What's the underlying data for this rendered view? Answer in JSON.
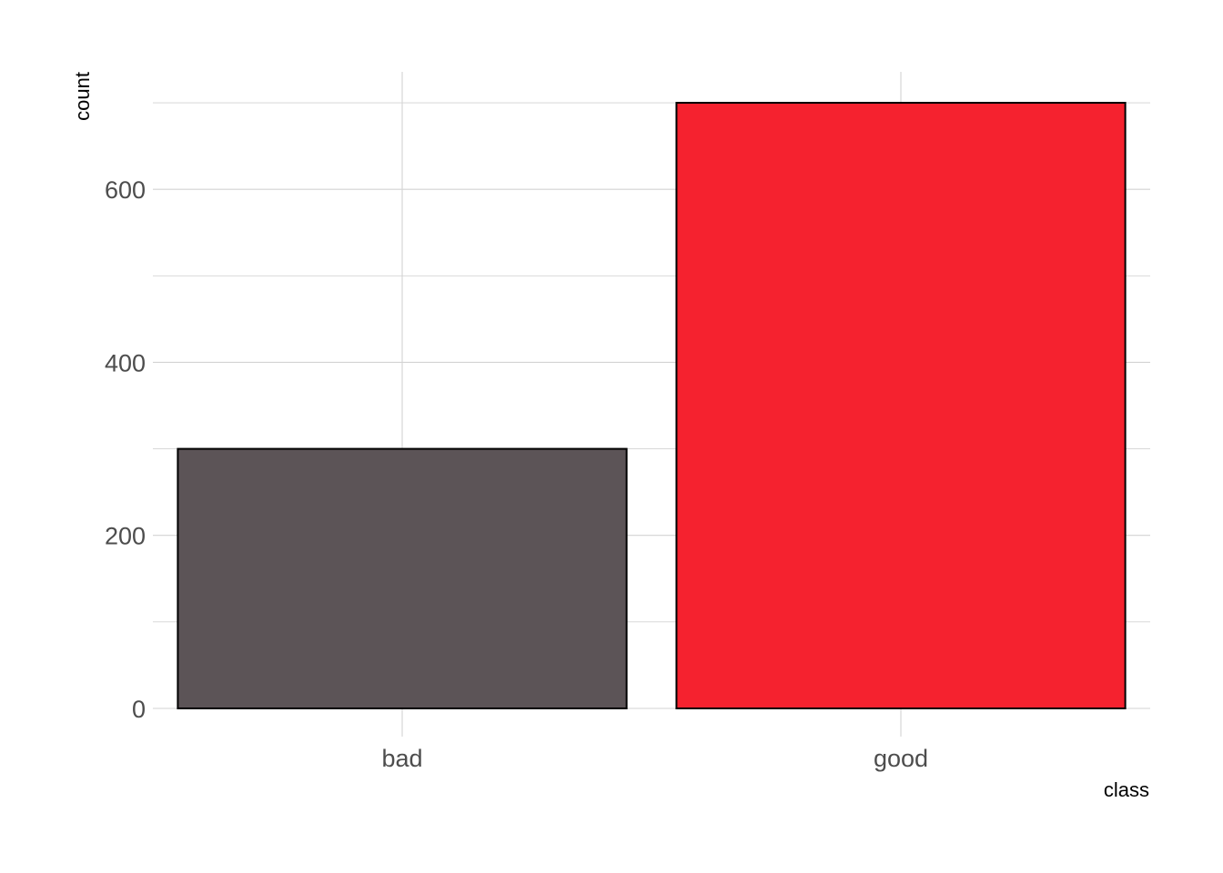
{
  "chart_data": {
    "type": "bar",
    "categories": [
      "bad",
      "good"
    ],
    "values": [
      300,
      700
    ],
    "colors": [
      "#5c5457",
      "#f5222f"
    ],
    "bar_outline_color": "#000000",
    "xlabel": "class",
    "ylabel": "count",
    "ylim": [
      0,
      735
    ],
    "yticks": [
      0,
      200,
      400,
      600
    ],
    "ytick_labels": [
      "0",
      "200",
      "400",
      "600"
    ],
    "grid": true,
    "grid_color": "#d3d3d3",
    "legend": "none"
  }
}
